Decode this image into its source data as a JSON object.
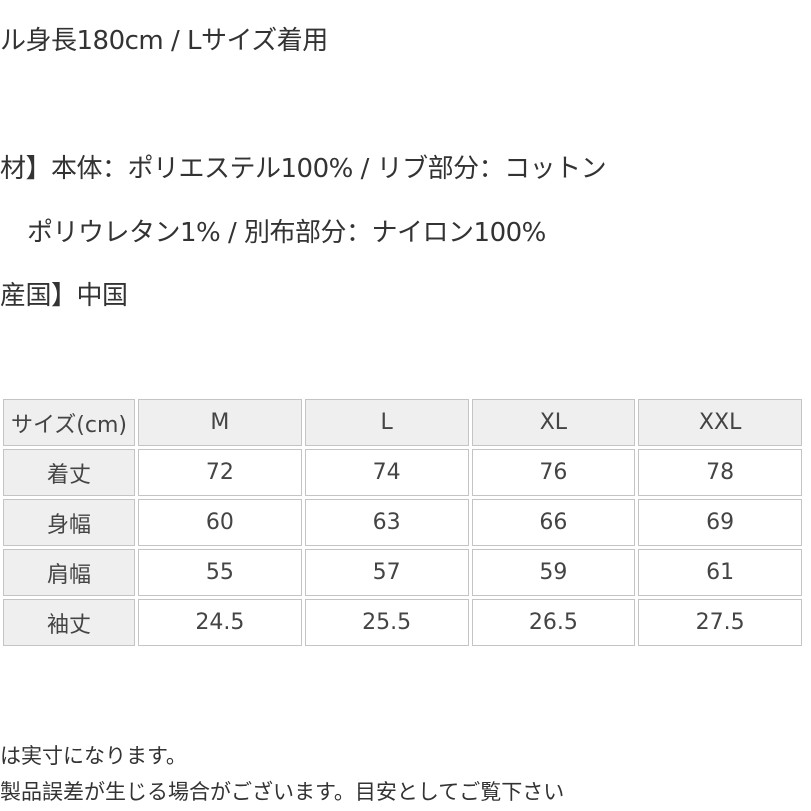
{
  "model_line": "ル身長180cm / Lサイズ着用",
  "material_line1": "材】本体：ポリエステル100% / リブ部分：コットン",
  "material_line2": "ポリウレタン1% / 別布部分：ナイロン100%",
  "origin_line": "産国】中国",
  "size_table": {
    "header": [
      "サイズ(cm)",
      "M",
      "L",
      "XL",
      "XXL"
    ],
    "rows": [
      {
        "label": "着丈",
        "values": [
          "72",
          "74",
          "76",
          "78"
        ]
      },
      {
        "label": "身幅",
        "values": [
          "60",
          "63",
          "66",
          "69"
        ]
      },
      {
        "label": "肩幅",
        "values": [
          "55",
          "57",
          "59",
          "61"
        ]
      },
      {
        "label": "袖丈",
        "values": [
          "24.5",
          "25.5",
          "26.5",
          "27.5"
        ]
      }
    ]
  },
  "note1": "は実寸になります。",
  "note2": "製品誤差が生じる場合がございます。目安としてご覧下さい"
}
